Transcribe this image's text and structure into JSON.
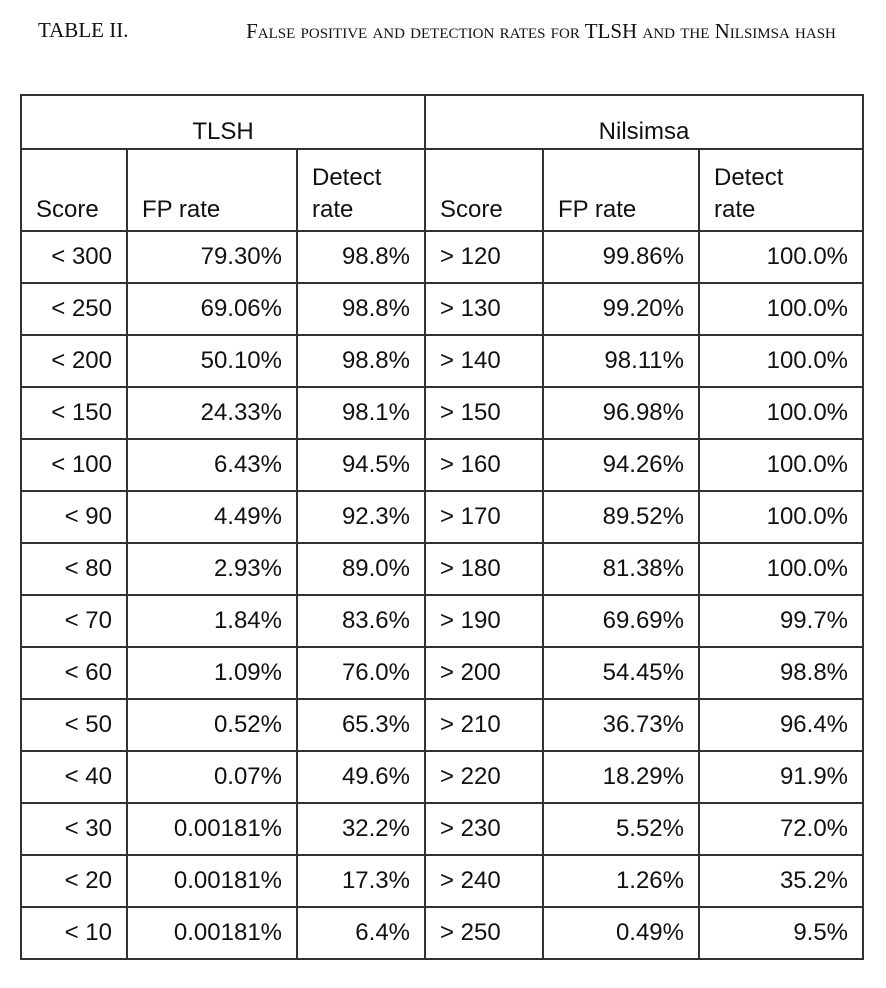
{
  "caption": {
    "label": "TABLE II.",
    "title": "False positive and detection rates for TLSH and the Nilsimsa hash"
  },
  "table": {
    "groups": [
      "TLSH",
      "Nilsimsa"
    ],
    "headers": [
      "Score",
      "FP rate",
      "Detect\nrate",
      "Score",
      "FP rate",
      "Detect\nrate"
    ],
    "rows": [
      [
        "< 300",
        "79.30%",
        "98.8%",
        "> 120",
        "99.86%",
        "100.0%"
      ],
      [
        "< 250",
        "69.06%",
        "98.8%",
        "> 130",
        "99.20%",
        "100.0%"
      ],
      [
        "< 200",
        "50.10%",
        "98.8%",
        "> 140",
        "98.11%",
        "100.0%"
      ],
      [
        "< 150",
        "24.33%",
        "98.1%",
        "> 150",
        "96.98%",
        "100.0%"
      ],
      [
        "< 100",
        "6.43%",
        "94.5%",
        "> 160",
        "94.26%",
        "100.0%"
      ],
      [
        "< 90",
        "4.49%",
        "92.3%",
        "> 170",
        "89.52%",
        "100.0%"
      ],
      [
        "< 80",
        "2.93%",
        "89.0%",
        "> 180",
        "81.38%",
        "100.0%"
      ],
      [
        "< 70",
        "1.84%",
        "83.6%",
        "> 190",
        "69.69%",
        "99.7%"
      ],
      [
        "< 60",
        "1.09%",
        "76.0%",
        "> 200",
        "54.45%",
        "98.8%"
      ],
      [
        "< 50",
        "0.52%",
        "65.3%",
        "> 210",
        "36.73%",
        "96.4%"
      ],
      [
        "< 40",
        "0.07%",
        "49.6%",
        "> 220",
        "18.29%",
        "91.9%"
      ],
      [
        "< 30",
        "0.00181%",
        "32.2%",
        "> 230",
        "5.52%",
        "72.0%"
      ],
      [
        "< 20",
        "0.00181%",
        "17.3%",
        "> 240",
        "1.26%",
        "35.2%"
      ],
      [
        "< 10",
        "0.00181%",
        "6.4%",
        "> 250",
        "0.49%",
        "9.5%"
      ]
    ]
  }
}
